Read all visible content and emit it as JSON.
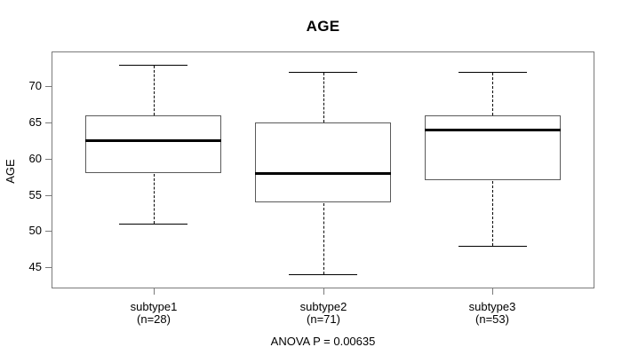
{
  "chart_data": {
    "type": "boxplot",
    "title": "AGE",
    "ylabel": "AGE",
    "xlabel": "",
    "annotation": "ANOVA P = 0.00635",
    "y_ticks": [
      45,
      50,
      55,
      60,
      65,
      70
    ],
    "ylim": [
      42.1,
      74.8
    ],
    "grid": false,
    "legend": "none",
    "groups": [
      {
        "label": "subtype1",
        "sublabel": "(n=28)",
        "n": 28,
        "whisker_low": 51,
        "q1": 58,
        "median": 62.5,
        "q3": 66,
        "whisker_high": 73
      },
      {
        "label": "subtype2",
        "sublabel": "(n=71)",
        "n": 71,
        "whisker_low": 44,
        "q1": 54,
        "median": 58,
        "q3": 65,
        "whisker_high": 72
      },
      {
        "label": "subtype3",
        "sublabel": "(n=53)",
        "n": 53,
        "whisker_low": 48,
        "q1": 57,
        "median": 64,
        "q3": 66,
        "whisker_high": 72
      }
    ],
    "colors": {
      "text": "#000000",
      "frame_border": "#7a7a7a",
      "box_border": "#5a5a5a",
      "box_fill": "#ffffff",
      "median": "#000000",
      "whisker": "#000000",
      "background": "#ffffff"
    }
  }
}
